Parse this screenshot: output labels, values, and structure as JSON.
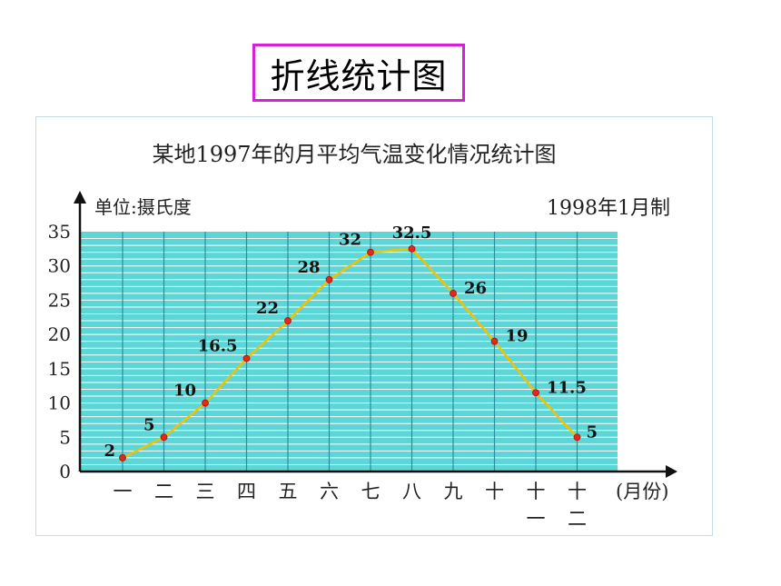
{
  "header": {
    "title": "折线统计图"
  },
  "chart_data": {
    "type": "line",
    "title": "某地1997年的月平均气温变化情况统计图",
    "unit_label": "单位:摄氏度",
    "date_label": "1998年1月制",
    "x_axis_unit": "(月份)",
    "categories": [
      "一",
      "二",
      "三",
      "四",
      "五",
      "六",
      "七",
      "八",
      "九",
      "十",
      "十一",
      "十二"
    ],
    "category_lines": [
      [
        "一"
      ],
      [
        "二"
      ],
      [
        "三"
      ],
      [
        "四"
      ],
      [
        "五"
      ],
      [
        "六"
      ],
      [
        "七"
      ],
      [
        "八"
      ],
      [
        "九"
      ],
      [
        "十"
      ],
      [
        "十",
        "一"
      ],
      [
        "十",
        "二"
      ]
    ],
    "values": [
      2,
      5,
      10,
      16.5,
      22,
      28,
      32,
      32.5,
      26,
      19,
      11.5,
      5
    ],
    "value_labels": [
      "2",
      "5",
      "10",
      "16.5",
      "22",
      "28",
      "32",
      "32.5",
      "26",
      "19",
      "11.5",
      "5"
    ],
    "yticks": [
      "0",
      "5",
      "10",
      "15",
      "20",
      "25",
      "30",
      "35"
    ],
    "ylim": [
      0,
      35
    ],
    "grid": true,
    "colors": {
      "grid_bg": "#5cd6d6",
      "grid_line": "#ffffff",
      "line": "#f2c200",
      "point": "#e8261a"
    }
  }
}
